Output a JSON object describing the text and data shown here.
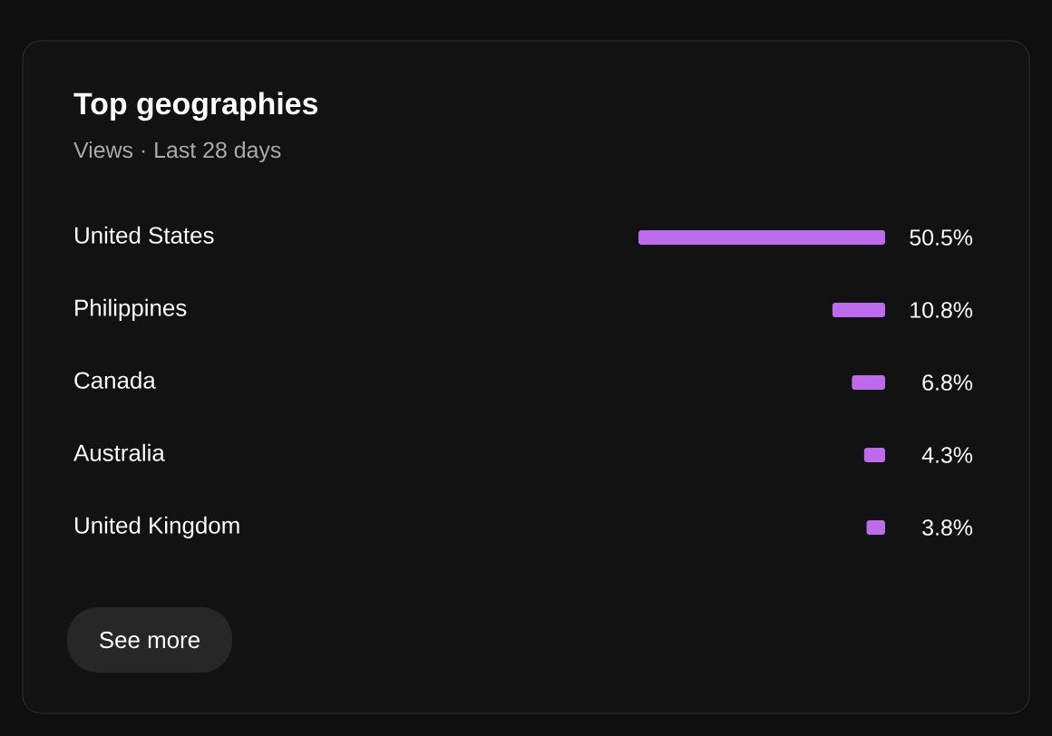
{
  "chart_data": {
    "type": "bar",
    "orientation": "horizontal",
    "title": "Top geographies",
    "subtitle": "Views · Last 28 days",
    "categories": [
      "United States",
      "Philippines",
      "Canada",
      "Australia",
      "United Kingdom"
    ],
    "values": [
      50.5,
      10.8,
      6.8,
      4.3,
      3.8
    ],
    "value_labels": [
      "50.5%",
      "10.8%",
      "6.8%",
      "4.3%",
      "3.8%"
    ],
    "color": "#bb6bec",
    "annotations": [
      "See more"
    ]
  }
}
